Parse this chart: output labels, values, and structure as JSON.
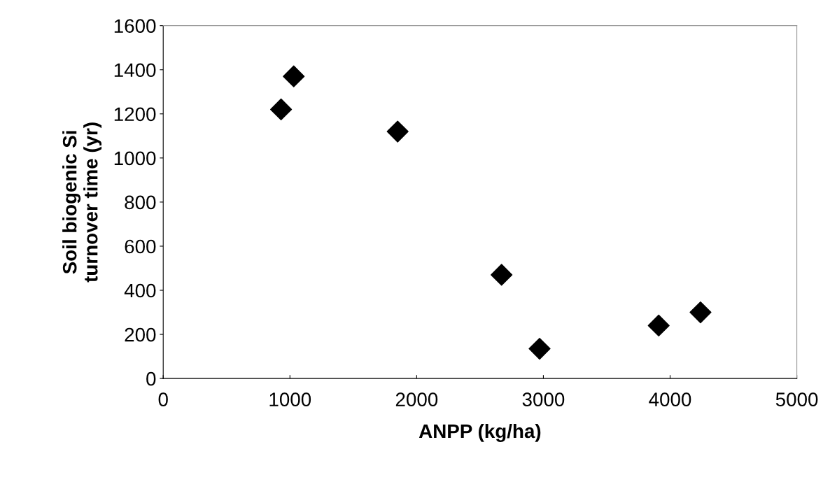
{
  "chart_data": {
    "type": "scatter",
    "xlabel": "ANPP (kg/ha)",
    "ylabel": "Soil biogenic Si\nturnover time (yr)",
    "x": [
      930,
      1030,
      1850,
      2670,
      2970,
      3910,
      4240
    ],
    "values": [
      1220,
      1370,
      1120,
      470,
      135,
      240,
      300
    ],
    "color": "#000000",
    "marker": "diamond",
    "xlim": [
      0,
      5000
    ],
    "xticks": [
      0,
      1000,
      2000,
      3000,
      4000,
      5000
    ],
    "ylim": [
      0,
      1600
    ],
    "yticks": [
      0,
      200,
      400,
      600,
      800,
      1000,
      1200,
      1400,
      1600
    ],
    "grid": false,
    "legend": false
  }
}
